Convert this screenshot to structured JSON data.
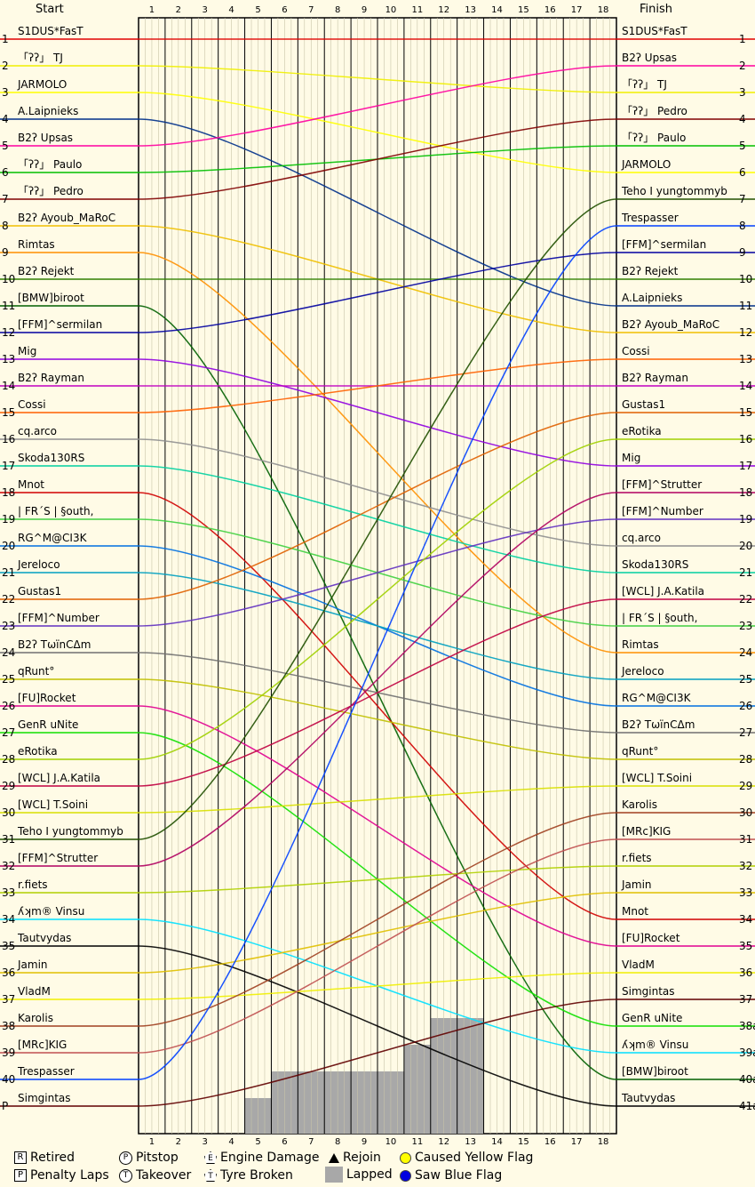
{
  "chart_data": {
    "type": "line",
    "left_header": "Start",
    "right_header": "Finish",
    "laps": [
      "1",
      "2",
      "3",
      "4",
      "5",
      "6",
      "7",
      "8",
      "9",
      "10",
      "11",
      "12",
      "13",
      "14",
      "15",
      "16",
      "17",
      "18"
    ],
    "position_labels": [
      "1",
      "2",
      "3",
      "4",
      "5",
      "6",
      "7",
      "8",
      "9",
      "10",
      "11",
      "12",
      "13",
      "14",
      "15",
      "16",
      "17",
      "18",
      "19",
      "20",
      "21",
      "22",
      "23",
      "24",
      "25",
      "26",
      "27",
      "28",
      "29",
      "30",
      "31",
      "32",
      "33",
      "34",
      "35",
      "36",
      "37",
      "38",
      "39",
      "40",
      "P"
    ],
    "finish_position_labels": [
      "1",
      "2",
      "3",
      "4",
      "5",
      "6",
      "7",
      "8",
      "9",
      "10",
      "11",
      "12",
      "13",
      "14",
      "15",
      "16",
      "17",
      "18",
      "19",
      "20",
      "21",
      "22",
      "23",
      "24",
      "25",
      "26",
      "27",
      "28",
      "29",
      "30",
      "31",
      "32",
      "33",
      "34",
      "35",
      "36",
      "37",
      "38a",
      "39a",
      "40a",
      "41a"
    ],
    "start_order": [
      {
        "name": "S1DUS*FasT",
        "color": "#e00000"
      },
      {
        "name": "「ʔʔ」 TJ",
        "color": "#f0f000"
      },
      {
        "name": "JARMOLO",
        "color": "#ffff00"
      },
      {
        "name": "A.Laipnieks",
        "color": "#00308a"
      },
      {
        "name": "B2ʔ Upsas",
        "color": "#ff00a0"
      },
      {
        "name": "「ʔʔ」 Paulo",
        "color": "#00c000"
      },
      {
        "name": "「ʔʔ」 Pedro",
        "color": "#800000"
      },
      {
        "name": "B2ʔ Ayoub_MaRoC",
        "color": "#f0c000"
      },
      {
        "name": "Rimtas",
        "color": "#ff9000"
      },
      {
        "name": "B2ʔ Rejekt",
        "color": "#308000"
      },
      {
        "name": "[BMW]biroot",
        "color": "#006000"
      },
      {
        "name": "[FFM]^sermilan",
        "color": "#0000a0"
      },
      {
        "name": "Mig",
        "color": "#9000e0"
      },
      {
        "name": "B2ʔ Rayman",
        "color": "#c000c0"
      },
      {
        "name": "Cossi",
        "color": "#ff6000"
      },
      {
        "name": "cq.arco",
        "color": "#909090"
      },
      {
        "name": "Skoda130RS",
        "color": "#00d0a0"
      },
      {
        "name": "Mnot",
        "color": "#d00000"
      },
      {
        "name": "| FR´S | §outh,",
        "color": "#40d040"
      },
      {
        "name": "RG^M@CI3K",
        "color": "#0070e0"
      },
      {
        "name": "Jereloco",
        "color": "#00a0c0"
      },
      {
        "name": "Gustas1",
        "color": "#e06000"
      },
      {
        "name": "[FFM]^Number",
        "color": "#6030c0"
      },
      {
        "name": "B2ʔ TωïnCΔm",
        "color": "#707070"
      },
      {
        "name": "qRunt°",
        "color": "#c0c000"
      },
      {
        "name": "[FU]Rocket",
        "color": "#e00090"
      },
      {
        "name": "GenR uNite",
        "color": "#10e000"
      },
      {
        "name": "eRotika",
        "color": "#a0d000"
      },
      {
        "name": "[WCL] J.A.Katila",
        "color": "#c00040"
      },
      {
        "name": "[WCL] T.Soini",
        "color": "#d8e000"
      },
      {
        "name": "Teho I yungtommyb",
        "color": "#205000"
      },
      {
        "name": "[FFM]^Strutter",
        "color": "#b00060"
      },
      {
        "name": "r.fiets",
        "color": "#b0d000"
      },
      {
        "name": "ʎʞm® Vinsu",
        "color": "#00e0ff"
      },
      {
        "name": "Tautvydas",
        "color": "#000000"
      },
      {
        "name": "Jamin",
        "color": "#e0c000"
      },
      {
        "name": "VladM",
        "color": "#f0f000"
      },
      {
        "name": "Karolis",
        "color": "#a04020"
      },
      {
        "name": "[MRc]KIG",
        "color": "#c05050"
      },
      {
        "name": "Trespasser",
        "color": "#0040ff"
      },
      {
        "name": "Simgintas",
        "color": "#600000"
      }
    ],
    "finish_order": [
      {
        "name": "S1DUS*FasT",
        "color": "#e00000"
      },
      {
        "name": "B2ʔ Upsas",
        "color": "#ff00a0"
      },
      {
        "name": "「ʔʔ」 TJ",
        "color": "#f0f000"
      },
      {
        "name": "「ʔʔ」 Pedro",
        "color": "#800000"
      },
      {
        "name": "「ʔʔ」 Paulo",
        "color": "#00c000"
      },
      {
        "name": "JARMOLO",
        "color": "#ffff00"
      },
      {
        "name": "Teho I yungtommyb",
        "color": "#205000"
      },
      {
        "name": "Trespasser",
        "color": "#0040ff"
      },
      {
        "name": "[FFM]^sermilan",
        "color": "#0000a0"
      },
      {
        "name": "B2ʔ Rejekt",
        "color": "#308000"
      },
      {
        "name": "A.Laipnieks",
        "color": "#00308a"
      },
      {
        "name": "B2ʔ Ayoub_MaRoC",
        "color": "#f0c000"
      },
      {
        "name": "Cossi",
        "color": "#ff6000"
      },
      {
        "name": "B2ʔ Rayman",
        "color": "#c000c0"
      },
      {
        "name": "Gustas1",
        "color": "#e06000"
      },
      {
        "name": "eRotika",
        "color": "#a0d000"
      },
      {
        "name": "Mig",
        "color": "#9000e0"
      },
      {
        "name": "[FFM]^Strutter",
        "color": "#b00060"
      },
      {
        "name": "[FFM]^Number",
        "color": "#6030c0"
      },
      {
        "name": "cq.arco",
        "color": "#909090"
      },
      {
        "name": "Skoda130RS",
        "color": "#00d0a0"
      },
      {
        "name": "[WCL] J.A.Katila",
        "color": "#c00040"
      },
      {
        "name": "| FR´S | §outh,",
        "color": "#40d040"
      },
      {
        "name": "Rimtas",
        "color": "#ff9000"
      },
      {
        "name": "Jereloco",
        "color": "#00a0c0"
      },
      {
        "name": "RG^M@CI3K",
        "color": "#0070e0"
      },
      {
        "name": "B2ʔ TωïnCΔm",
        "color": "#707070"
      },
      {
        "name": "qRunt°",
        "color": "#c0c000"
      },
      {
        "name": "[WCL] T.Soini",
        "color": "#d8e000"
      },
      {
        "name": "Karolis",
        "color": "#a04020"
      },
      {
        "name": "[MRc]KIG",
        "color": "#c05050"
      },
      {
        "name": "r.fiets",
        "color": "#b0d000"
      },
      {
        "name": "Jamin",
        "color": "#e0c000"
      },
      {
        "name": "Mnot",
        "color": "#d00000"
      },
      {
        "name": "[FU]Rocket",
        "color": "#e00090"
      },
      {
        "name": "VladM",
        "color": "#f0f000"
      },
      {
        "name": "Simgintas",
        "color": "#600000"
      },
      {
        "name": "GenR uNite",
        "color": "#10e000"
      },
      {
        "name": "ʎʞm® Vinsu",
        "color": "#00e0ff"
      },
      {
        "name": "[BMW]biroot",
        "color": "#006000"
      },
      {
        "name": "Tautvydas",
        "color": "#000000"
      }
    ],
    "lapped_positions_by_lap": [
      0,
      0,
      0,
      0,
      1,
      2,
      2,
      2,
      2,
      2,
      3,
      4,
      4,
      0,
      0,
      0,
      0,
      0
    ],
    "yellow_flag_color": "#ffff00",
    "blue_flag_color": "#0000ff",
    "lapped_color": "#a8a8a8"
  },
  "legend": {
    "retired": "Retired",
    "retired_symbol": "R",
    "penalty": "Penalty Laps",
    "penalty_symbol": "P",
    "pitstop": "Pitstop",
    "pitstop_symbol": "P",
    "takeover": "Takeover",
    "takeover_symbol": "T",
    "engine": "Engine Damage",
    "engine_symbol": "E",
    "tyre": "Tyre Broken",
    "tyre_symbol": "T",
    "rejoin": "Rejoin",
    "lapped": "Lapped",
    "yellow": "Caused Yellow Flag",
    "blue": "Saw Blue Flag"
  }
}
